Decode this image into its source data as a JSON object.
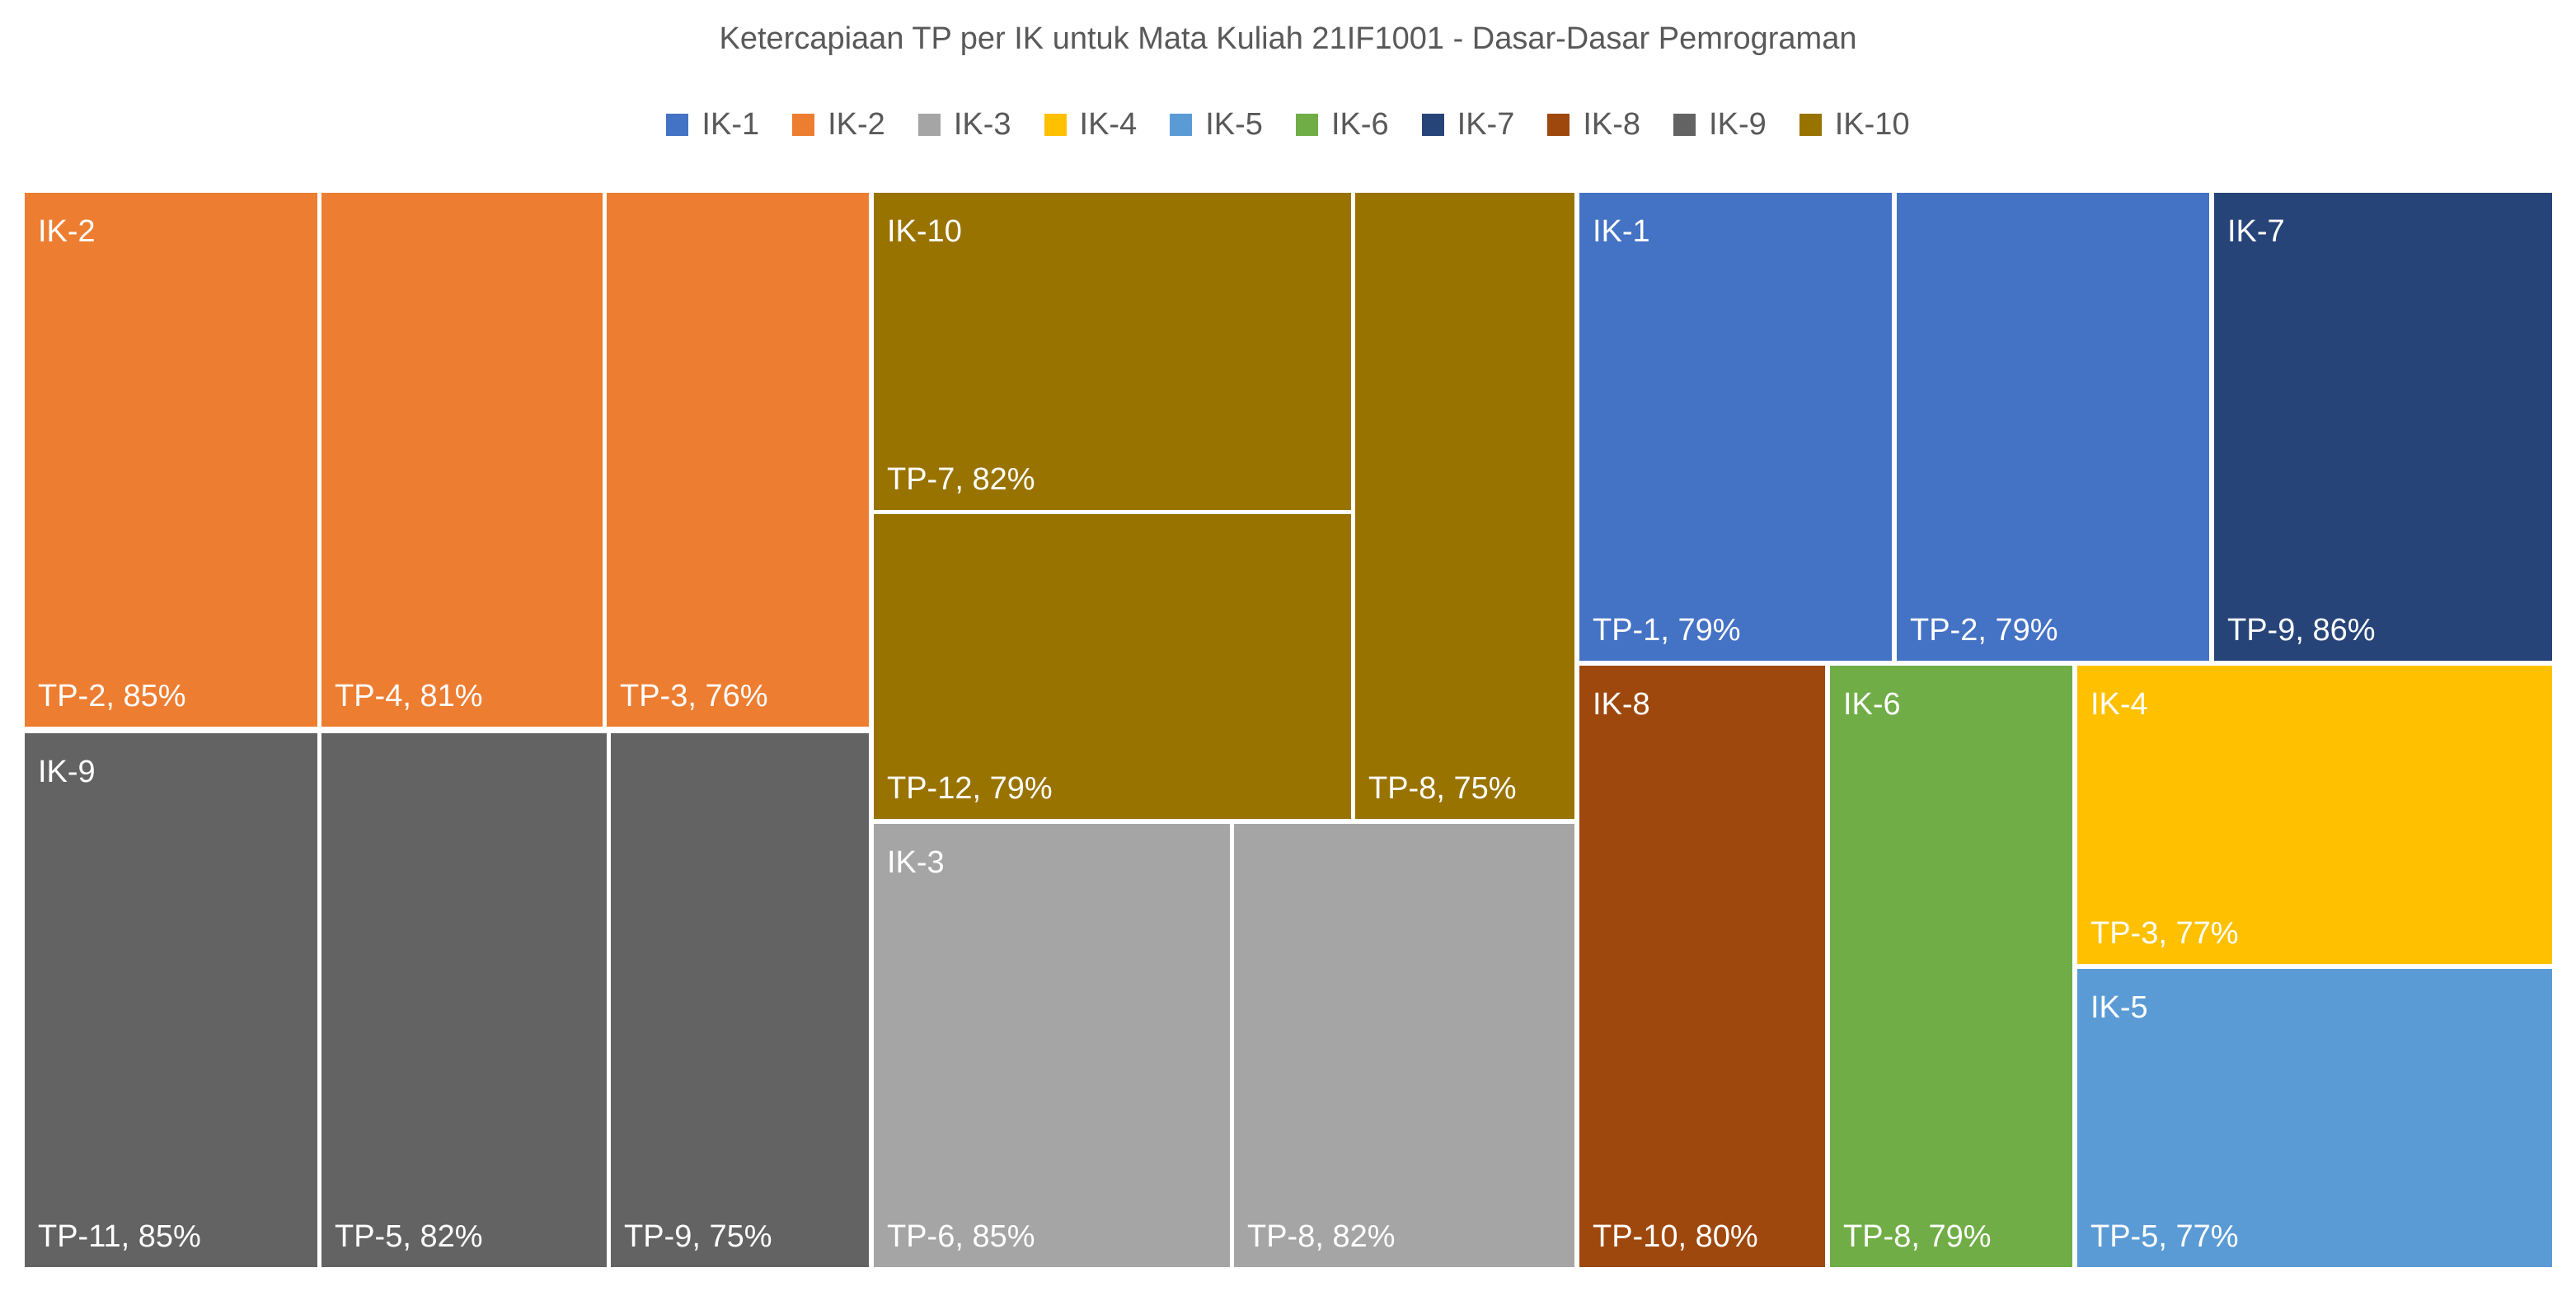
{
  "chart_data": {
    "type": "treemap",
    "title": "Ketercapiaan TP per IK untuk Mata Kuliah 21IF1001 - Dasar-Dasar Pemrograman",
    "legend_position": "top",
    "series": [
      {
        "name": "IK-1",
        "color": "#4472C4"
      },
      {
        "name": "IK-2",
        "color": "#ED7D31"
      },
      {
        "name": "IK-3",
        "color": "#A5A5A5"
      },
      {
        "name": "IK-4",
        "color": "#FFC000"
      },
      {
        "name": "IK-5",
        "color": "#5B9BD5"
      },
      {
        "name": "IK-6",
        "color": "#70AD47"
      },
      {
        "name": "IK-7",
        "color": "#264478"
      },
      {
        "name": "IK-8",
        "color": "#9E480E"
      },
      {
        "name": "IK-9",
        "color": "#636363"
      },
      {
        "name": "IK-10",
        "color": "#997300"
      }
    ],
    "groups": [
      {
        "name": "IK-2",
        "items": [
          {
            "label": "TP-2, 85%",
            "tp": "TP-2",
            "value": 85
          },
          {
            "label": "TP-4, 81%",
            "tp": "TP-4",
            "value": 81
          },
          {
            "label": "TP-3, 76%",
            "tp": "TP-3",
            "value": 76
          }
        ]
      },
      {
        "name": "IK-9",
        "items": [
          {
            "label": "TP-11, 85%",
            "tp": "TP-11",
            "value": 85
          },
          {
            "label": "TP-5, 82%",
            "tp": "TP-5",
            "value": 82
          },
          {
            "label": "TP-9, 75%",
            "tp": "TP-9",
            "value": 75
          }
        ]
      },
      {
        "name": "IK-10",
        "items": [
          {
            "label": "TP-7, 82%",
            "tp": "TP-7",
            "value": 82
          },
          {
            "label": "TP-12, 79%",
            "tp": "TP-12",
            "value": 79
          },
          {
            "label": "TP-8, 75%",
            "tp": "TP-8",
            "value": 75
          }
        ]
      },
      {
        "name": "IK-3",
        "items": [
          {
            "label": "TP-6, 85%",
            "tp": "TP-6",
            "value": 85
          },
          {
            "label": "TP-8, 82%",
            "tp": "TP-8",
            "value": 82
          }
        ]
      },
      {
        "name": "IK-1",
        "items": [
          {
            "label": "TP-1, 79%",
            "tp": "TP-1",
            "value": 79
          },
          {
            "label": "TP-2, 79%",
            "tp": "TP-2",
            "value": 79
          }
        ]
      },
      {
        "name": "IK-7",
        "items": [
          {
            "label": "TP-9, 86%",
            "tp": "TP-9",
            "value": 86
          }
        ]
      },
      {
        "name": "IK-8",
        "items": [
          {
            "label": "TP-10, 80%",
            "tp": "TP-10",
            "value": 80
          }
        ]
      },
      {
        "name": "IK-6",
        "items": [
          {
            "label": "TP-8, 79%",
            "tp": "TP-8",
            "value": 79
          }
        ]
      },
      {
        "name": "IK-4",
        "items": [
          {
            "label": "TP-3, 77%",
            "tp": "TP-3",
            "value": 77
          }
        ]
      },
      {
        "name": "IK-5",
        "items": [
          {
            "label": "TP-5, 77%",
            "tp": "TP-5",
            "value": 77
          }
        ]
      }
    ]
  }
}
